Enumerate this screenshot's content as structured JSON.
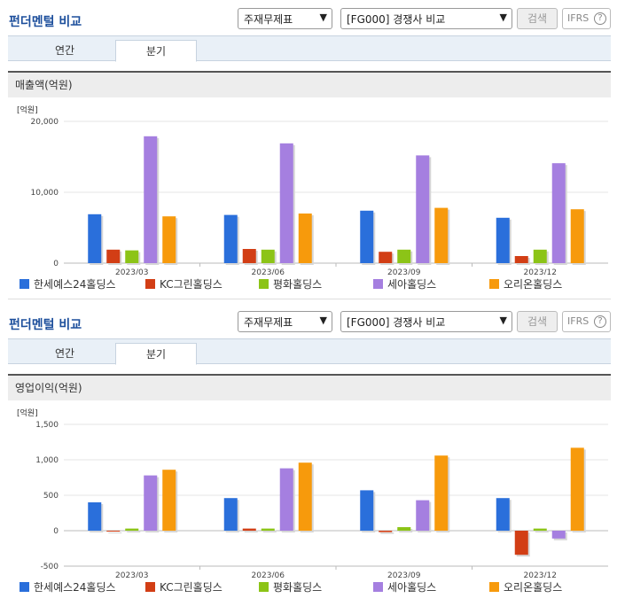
{
  "header": {
    "title": "펀더멘털 비교",
    "select1": "주재무제표",
    "select2": "[FG000] 경쟁사 비교",
    "search_label": "검색",
    "ifrs_label": "IFRS",
    "help_glyph": "?"
  },
  "tabs": [
    "연간",
    "분기"
  ],
  "legend": [
    {
      "name": "한세예스24홀딩스",
      "color": "#2a6fdb"
    },
    {
      "name": "KC그린홀딩스",
      "color": "#d23e15"
    },
    {
      "name": "평화홀딩스",
      "color": "#8cc417"
    },
    {
      "name": "세아홀딩스",
      "color": "#a57fe0"
    },
    {
      "name": "오리온홀딩스",
      "color": "#f79a0c"
    }
  ],
  "chart_data": [
    {
      "type": "bar",
      "title": "매출액(억원)",
      "unit": "[억원]",
      "categories": [
        "2023/03",
        "2023/06",
        "2023/09",
        "2023/12"
      ],
      "ylim": [
        0,
        20000
      ],
      "yticks": [
        "0",
        "10,000",
        "20,000"
      ],
      "ytick_values": [
        0,
        10000,
        20000
      ],
      "series": [
        {
          "name": "한세예스24홀딩스",
          "values": [
            6900,
            6800,
            7400,
            6400
          ]
        },
        {
          "name": "KC그린홀딩스",
          "values": [
            1900,
            2000,
            1600,
            1000
          ]
        },
        {
          "name": "평화홀딩스",
          "values": [
            1800,
            1900,
            1900,
            1900
          ]
        },
        {
          "name": "세아홀딩스",
          "values": [
            17900,
            16900,
            15200,
            14100
          ]
        },
        {
          "name": "오리온홀딩스",
          "values": [
            6600,
            7000,
            7800,
            7600
          ]
        }
      ]
    },
    {
      "type": "bar",
      "title": "영업이익(억원)",
      "unit": "[억원]",
      "categories": [
        "2023/03",
        "2023/06",
        "2023/09",
        "2023/12"
      ],
      "ylim": [
        -500,
        1500
      ],
      "yticks": [
        "-500",
        "0",
        "500",
        "1,000",
        "1,500"
      ],
      "ytick_values": [
        -500,
        0,
        500,
        1000,
        1500
      ],
      "series": [
        {
          "name": "한세예스24홀딩스",
          "values": [
            400,
            460,
            570,
            460
          ]
        },
        {
          "name": "KC그린홀딩스",
          "values": [
            0,
            30,
            -20,
            -340
          ]
        },
        {
          "name": "평화홀딩스",
          "values": [
            30,
            30,
            50,
            30
          ]
        },
        {
          "name": "세아홀딩스",
          "values": [
            780,
            880,
            430,
            -110
          ]
        },
        {
          "name": "오리온홀딩스",
          "values": [
            860,
            960,
            1060,
            1170
          ]
        }
      ]
    }
  ]
}
